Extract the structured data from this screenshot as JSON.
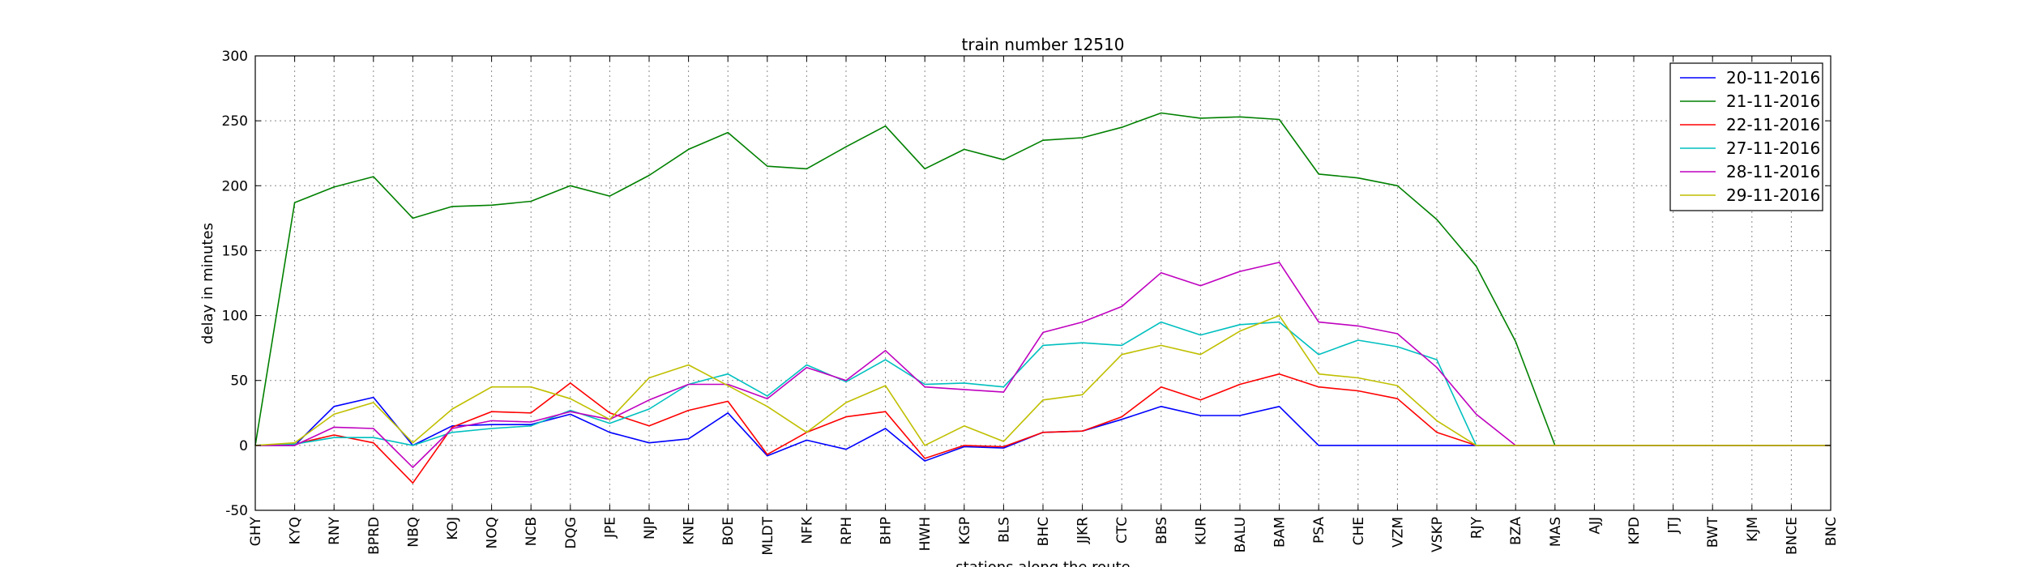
{
  "chart_data": {
    "type": "line",
    "title": "train number 12510",
    "xlabel": "stations along the route",
    "ylabel": "delay in minutes",
    "ylim": [
      -50,
      300
    ],
    "yticks": [
      -50,
      0,
      50,
      100,
      150,
      200,
      250,
      300
    ],
    "grid": true,
    "legend_position": "top-right",
    "categories": [
      "GHY",
      "KYQ",
      "RNY",
      "BPRD",
      "NBQ",
      "KOJ",
      "NOQ",
      "NCB",
      "DQG",
      "JPE",
      "NJP",
      "KNE",
      "BOE",
      "MLDT",
      "NFK",
      "RPH",
      "BHP",
      "HWH",
      "KGP",
      "BLS",
      "BHC",
      "JJKR",
      "CTC",
      "BBS",
      "KUR",
      "BALU",
      "BAM",
      "PSA",
      "CHE",
      "VZM",
      "VSKP",
      "RJY",
      "BZA",
      "MAS",
      "AJJ",
      "KPD",
      "JTJ",
      "BWT",
      "KJM",
      "BNCE",
      "BNC"
    ],
    "series": [
      {
        "name": "20-11-2016",
        "color": "#0000ff",
        "values": [
          0,
          0,
          30,
          37,
          0,
          15,
          16,
          16,
          24,
          10,
          2,
          5,
          25,
          -8,
          4,
          -3,
          13,
          -12,
          -1,
          -2,
          10,
          11,
          20,
          30,
          23,
          23,
          30,
          0,
          0,
          0,
          0,
          0,
          0,
          0,
          0,
          0,
          0,
          0,
          0,
          0,
          0
        ]
      },
      {
        "name": "21-11-2016",
        "color": "#008000",
        "values": [
          0,
          187,
          199,
          207,
          175,
          184,
          185,
          188,
          200,
          192,
          208,
          228,
          241,
          215,
          213,
          230,
          246,
          213,
          228,
          220,
          235,
          237,
          245,
          256,
          252,
          253,
          251,
          209,
          206,
          200,
          174,
          138,
          80,
          0,
          0,
          0,
          0,
          0,
          0,
          0,
          0
        ]
      },
      {
        "name": "22-11-2016",
        "color": "#ff0000",
        "values": [
          0,
          1,
          8,
          2,
          -29,
          14,
          26,
          25,
          48,
          25,
          15,
          27,
          34,
          -7,
          10,
          22,
          26,
          -10,
          0,
          -1,
          10,
          11,
          22,
          45,
          35,
          47,
          55,
          45,
          42,
          36,
          10,
          0,
          0,
          0,
          0,
          0,
          0,
          0,
          0,
          0,
          0
        ]
      },
      {
        "name": "27-11-2016",
        "color": "#00bfbf",
        "values": [
          0,
          1,
          6,
          6,
          0,
          10,
          13,
          15,
          27,
          17,
          28,
          47,
          55,
          38,
          62,
          49,
          66,
          47,
          48,
          45,
          77,
          79,
          77,
          95,
          85,
          93,
          95,
          70,
          81,
          76,
          66,
          0,
          0,
          0,
          0,
          0,
          0,
          0,
          0,
          0,
          0
        ]
      },
      {
        "name": "28-11-2016",
        "color": "#bf00bf",
        "values": [
          0,
          0,
          14,
          13,
          -17,
          13,
          19,
          18,
          26,
          20,
          35,
          47,
          47,
          36,
          60,
          50,
          73,
          45,
          43,
          41,
          87,
          95,
          107,
          133,
          123,
          134,
          141,
          95,
          92,
          86,
          60,
          24,
          0,
          0,
          0,
          0,
          0,
          0,
          0,
          0,
          0
        ]
      },
      {
        "name": "29-11-2016",
        "color": "#bfbf00",
        "values": [
          0,
          2,
          24,
          33,
          2,
          28,
          45,
          45,
          36,
          20,
          52,
          62,
          46,
          30,
          10,
          33,
          46,
          0,
          15,
          3,
          35,
          39,
          70,
          77,
          70,
          88,
          100,
          55,
          52,
          46,
          19,
          0,
          0,
          0,
          0,
          0,
          0,
          0,
          0,
          0,
          0
        ]
      }
    ]
  }
}
